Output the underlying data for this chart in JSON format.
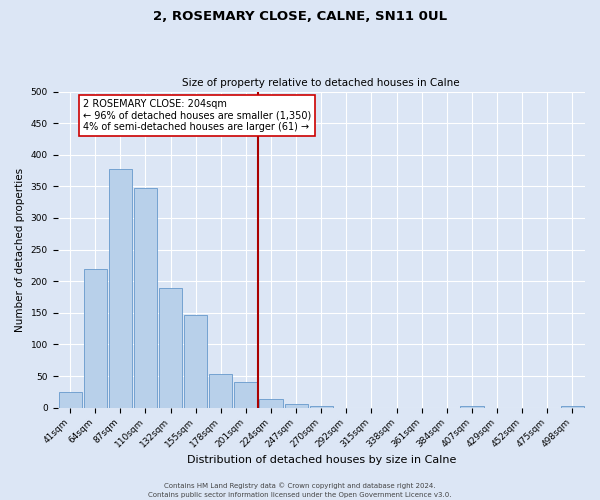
{
  "title": "2, ROSEMARY CLOSE, CALNE, SN11 0UL",
  "subtitle": "Size of property relative to detached houses in Calne",
  "xlabel": "Distribution of detached houses by size in Calne",
  "ylabel": "Number of detached properties",
  "bar_labels": [
    "41sqm",
    "64sqm",
    "87sqm",
    "110sqm",
    "132sqm",
    "155sqm",
    "178sqm",
    "201sqm",
    "224sqm",
    "247sqm",
    "270sqm",
    "292sqm",
    "315sqm",
    "338sqm",
    "361sqm",
    "384sqm",
    "407sqm",
    "429sqm",
    "452sqm",
    "475sqm",
    "498sqm"
  ],
  "bar_values": [
    25,
    220,
    378,
    347,
    190,
    147,
    53,
    40,
    13,
    6,
    2,
    0,
    0,
    0,
    0,
    0,
    3,
    0,
    0,
    0,
    2
  ],
  "bar_color": "#b8d0ea",
  "bar_edge_color": "#6699cc",
  "vline_x_index": 7.5,
  "vline_color": "#aa0000",
  "annotation_line1": "2 ROSEMARY CLOSE: 204sqm",
  "annotation_line2": "← 96% of detached houses are smaller (1,350)",
  "annotation_line3": "4% of semi-detached houses are larger (61) →",
  "annotation_box_facecolor": "#ffffff",
  "annotation_box_edgecolor": "#cc0000",
  "ylim": [
    0,
    500
  ],
  "yticks": [
    0,
    50,
    100,
    150,
    200,
    250,
    300,
    350,
    400,
    450,
    500
  ],
  "footer1": "Contains HM Land Registry data © Crown copyright and database right 2024.",
  "footer2": "Contains public sector information licensed under the Open Government Licence v3.0.",
  "fig_facecolor": "#dce6f5",
  "plot_facecolor": "#dce6f5",
  "grid_color": "#ffffff",
  "title_fontsize": 9.5,
  "subtitle_fontsize": 7.5,
  "xlabel_fontsize": 8,
  "ylabel_fontsize": 7.5,
  "tick_fontsize": 6.5,
  "annot_fontsize": 7,
  "footer_fontsize": 5
}
